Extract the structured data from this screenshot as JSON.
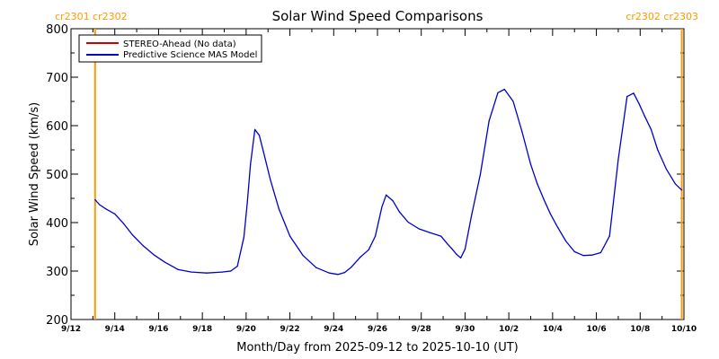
{
  "colors": {
    "model_line": "#0000cc",
    "stereo_line": "#cc0000",
    "marker_line": "#ff9900",
    "marker_text": "#ff9900",
    "axes": "#000000",
    "background": "#ffffff"
  },
  "chart_data": {
    "type": "line",
    "title": "Solar Wind Speed Comparisons",
    "ylabel": "Solar Wind Speed (km/s)",
    "xlabel": "Month/Day from 2025-09-12 to 2025-10-10 (UT)",
    "xlim": [
      0,
      28
    ],
    "ylim": [
      200,
      800
    ],
    "ytick_values": [
      200,
      300,
      400,
      500,
      600,
      700,
      800
    ],
    "ytick_labels": [
      "200",
      "300",
      "400",
      "500",
      "600",
      "700",
      "800"
    ],
    "xtick_values": [
      0,
      2,
      4,
      6,
      8,
      10,
      12,
      14,
      16,
      18,
      20,
      22,
      24,
      26,
      28
    ],
    "xtick_labels": [
      "9/12",
      "9/14",
      "9/16",
      "9/18",
      "9/20",
      "9/22",
      "9/24",
      "9/26",
      "9/28",
      "9/30",
      "10/2",
      "10/4",
      "10/6",
      "10/8",
      "10/10"
    ],
    "legend": [
      {
        "label": "STEREO-Ahead (No data)",
        "color": "#cc0000"
      },
      {
        "label": "Predictive Science MAS Model",
        "color": "#0000cc"
      }
    ],
    "legend_position": "top-left",
    "carrington_markers": [
      {
        "x": 1.1,
        "label": "cr2301 cr2302"
      },
      {
        "x": 27.9,
        "label": "cr2302 cr2303"
      }
    ],
    "series": [
      {
        "name": "Predictive Science MAS Model",
        "x": [
          1.1,
          1.3,
          1.6,
          2.0,
          2.4,
          2.8,
          3.3,
          3.8,
          4.3,
          4.9,
          5.5,
          6.2,
          6.9,
          7.3,
          7.6,
          7.9,
          8.05,
          8.2,
          8.4,
          8.6,
          8.8,
          9.1,
          9.5,
          10.0,
          10.6,
          11.2,
          11.8,
          12.2,
          12.5,
          12.8,
          13.2,
          13.6,
          13.9,
          14.2,
          14.4,
          14.7,
          15.0,
          15.4,
          15.9,
          16.4,
          16.9,
          17.2,
          17.4,
          17.6,
          17.8,
          18.0,
          18.3,
          18.7,
          19.1,
          19.5,
          19.8,
          20.2,
          20.6,
          21.0,
          21.3,
          21.6,
          21.9,
          22.2,
          22.6,
          23.0,
          23.4,
          23.8,
          24.2,
          24.6,
          25.0,
          25.4,
          25.7,
          25.95,
          26.2,
          26.5,
          26.8,
          27.2,
          27.6,
          27.9
        ],
        "y": [
          447,
          437,
          428,
          418,
          398,
          375,
          352,
          333,
          318,
          303,
          298,
          296,
          298,
          300,
          310,
          370,
          440,
          520,
          592,
          580,
          545,
          490,
          428,
          372,
          332,
          307,
          296,
          293,
          297,
          308,
          328,
          344,
          372,
          432,
          457,
          445,
          422,
          401,
          387,
          379,
          372,
          356,
          346,
          335,
          327,
          345,
          415,
          500,
          610,
          668,
          675,
          650,
          588,
          520,
          480,
          448,
          418,
          393,
          362,
          340,
          332,
          333,
          338,
          372,
          530,
          660,
          667,
          645,
          620,
          592,
          550,
          510,
          480,
          467
        ]
      },
      {
        "name": "STEREO-Ahead (No data)",
        "x": [],
        "y": []
      }
    ]
  }
}
